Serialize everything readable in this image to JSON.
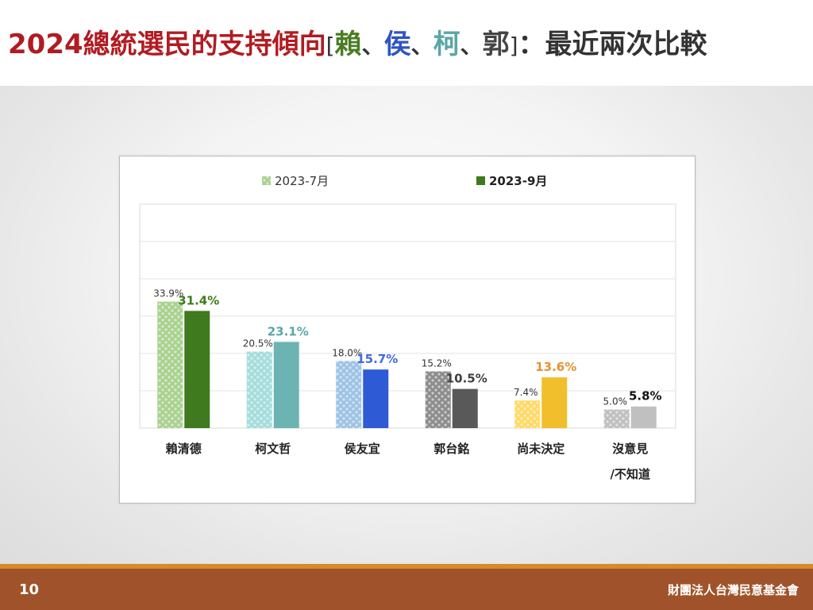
{
  "slide": {
    "title_main": "2024總統選民的支持傾向",
    "title_bracket_open": "[",
    "title_bracket_close": "]",
    "title_sep": "、",
    "title_names": [
      {
        "text": "賴",
        "color": "#4a7d23"
      },
      {
        "text": "侯",
        "color": "#2f53c6"
      },
      {
        "text": "柯",
        "color": "#5aa6a6"
      },
      {
        "text": "郭",
        "color": "#444444"
      }
    ],
    "title_tail": "：最近兩次比較",
    "page_number": "10",
    "organization": "財團法人台灣民意基金會"
  },
  "chart_data": {
    "type": "bar",
    "categories": [
      [
        "賴清德"
      ],
      [
        "柯文哲"
      ],
      [
        "侯友宜"
      ],
      [
        "郭台銘"
      ],
      [
        "尚未決定"
      ],
      [
        "沒意見",
        "/不知道"
      ]
    ],
    "series": [
      {
        "name": "2023-7月",
        "values": [
          33.9,
          20.5,
          18.0,
          15.2,
          7.4,
          5.0
        ],
        "labels": [
          "33.9%",
          "20.5%",
          "18.0%",
          "15.2%",
          "7.4%",
          "5.0%"
        ]
      },
      {
        "name": "2023-9月",
        "values": [
          31.4,
          23.1,
          15.7,
          10.5,
          13.6,
          5.8
        ],
        "labels": [
          "31.4%",
          "23.1%",
          "15.7%",
          "10.5%",
          "13.6%",
          "5.8%"
        ]
      }
    ],
    "ylim": [
      0,
      60
    ],
    "grid": true,
    "legend": "top",
    "colors": {
      "series1_by_category": [
        "#a9d18e",
        "#a5dcdc",
        "#9dc3e6",
        "#8c8c8c",
        "#ffd966",
        "#bfbfbf"
      ],
      "series2_by_category": [
        "#3f7a1e",
        "#6cb4b4",
        "#2e5ad6",
        "#595959",
        "#f0bf2b",
        "#c0c0c0"
      ],
      "label2_by_category": [
        "#3f7a1e",
        "#5aa6a6",
        "#4169e1",
        "#404040",
        "#e8902e",
        "#111111"
      ],
      "legend1": "#a9d18e",
      "legend2": "#3f7a1e"
    }
  }
}
